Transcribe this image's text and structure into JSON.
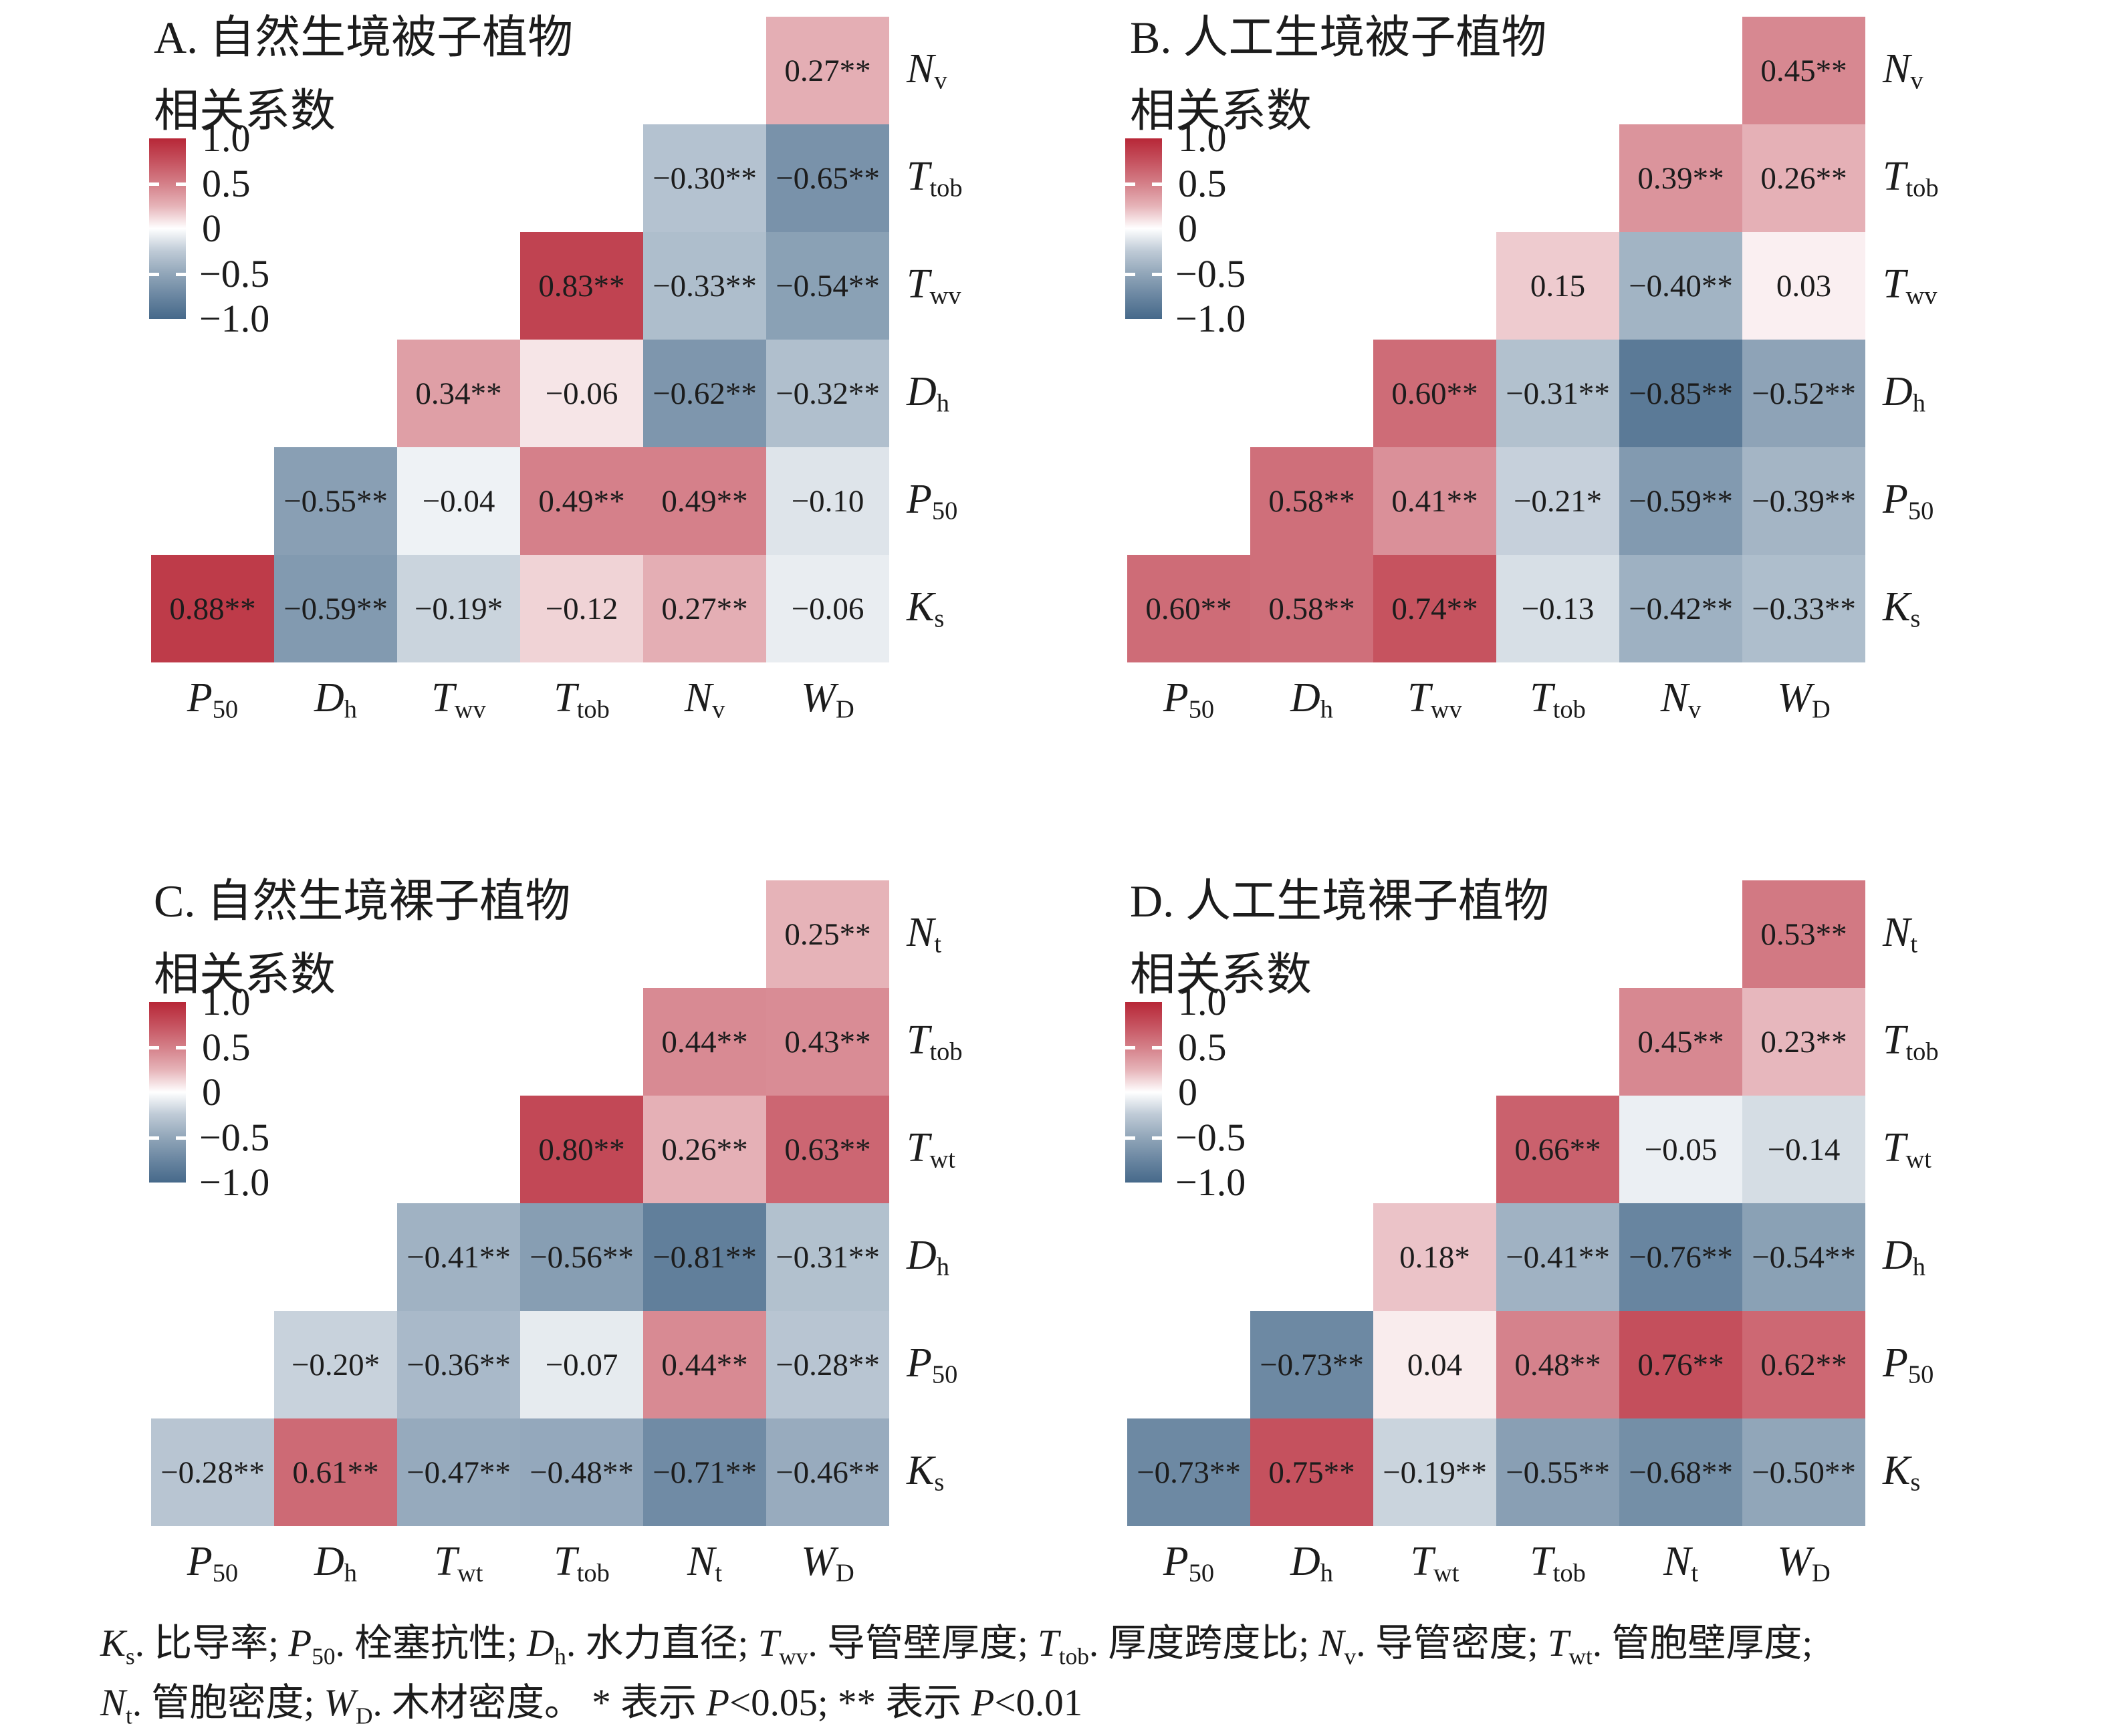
{
  "palette": {
    "positive_max": "#b72737",
    "negative_min": "#46698a",
    "zero": "#ffffff",
    "gamma": 0.75,
    "text": "#1c1c1c"
  },
  "legend": {
    "label": "相关系数",
    "ticks": [
      "1.0",
      "0.5",
      "0",
      "−0.5",
      "−1.0"
    ],
    "tick_values": [
      1.0,
      0.5,
      0,
      -0.5,
      -1.0
    ],
    "range": [
      -1,
      1
    ]
  },
  "chart_data": [
    {
      "id": "A",
      "type": "heatmap",
      "title": "A. 自然生境被子植物",
      "legend_label": "相关系数",
      "value_range": [
        -1,
        1
      ],
      "columns": [
        [
          "P",
          "50"
        ],
        [
          "D",
          "h"
        ],
        [
          "T",
          "wv"
        ],
        [
          "T",
          "tob"
        ],
        [
          "N",
          "v"
        ],
        [
          "W",
          "D"
        ]
      ],
      "rows": [
        [
          "N",
          "v"
        ],
        [
          "T",
          "tob"
        ],
        [
          "T",
          "wv"
        ],
        [
          "D",
          "h"
        ],
        [
          "P",
          "50"
        ],
        [
          "K",
          "s"
        ]
      ],
      "cells": [
        {
          "r": 0,
          "c": 5,
          "label": "0.27**",
          "value": 0.27
        },
        {
          "r": 1,
          "c": 4,
          "label": "−0.30**",
          "value": -0.3
        },
        {
          "r": 1,
          "c": 5,
          "label": "−0.65**",
          "value": -0.65
        },
        {
          "r": 2,
          "c": 3,
          "label": "0.83**",
          "value": 0.83
        },
        {
          "r": 2,
          "c": 4,
          "label": "−0.33**",
          "value": -0.33
        },
        {
          "r": 2,
          "c": 5,
          "label": "−0.54**",
          "value": -0.54
        },
        {
          "r": 3,
          "c": 2,
          "label": "0.34**",
          "value": 0.34
        },
        {
          "r": 3,
          "c": 3,
          "label": "−0.06",
          "value": -0.06,
          "color_value": 0.06
        },
        {
          "r": 3,
          "c": 4,
          "label": "−0.62**",
          "value": -0.62
        },
        {
          "r": 3,
          "c": 5,
          "label": "−0.32**",
          "value": -0.32
        },
        {
          "r": 4,
          "c": 1,
          "label": "−0.55**",
          "value": -0.55
        },
        {
          "r": 4,
          "c": 2,
          "label": "−0.04",
          "value": -0.04
        },
        {
          "r": 4,
          "c": 3,
          "label": "0.49**",
          "value": 0.49
        },
        {
          "r": 4,
          "c": 4,
          "label": "0.49**",
          "value": 0.49
        },
        {
          "r": 4,
          "c": 5,
          "label": "−0.10",
          "value": -0.1
        },
        {
          "r": 5,
          "c": 0,
          "label": "0.88**",
          "value": 0.88
        },
        {
          "r": 5,
          "c": 1,
          "label": "−0.59**",
          "value": -0.59
        },
        {
          "r": 5,
          "c": 2,
          "label": "−0.19*",
          "value": -0.19
        },
        {
          "r": 5,
          "c": 3,
          "label": "−0.12",
          "value": -0.12,
          "color_value": 0.12
        },
        {
          "r": 5,
          "c": 4,
          "label": "0.27**",
          "value": 0.27
        },
        {
          "r": 5,
          "c": 5,
          "label": "−0.06",
          "value": -0.06
        }
      ]
    },
    {
      "id": "B",
      "type": "heatmap",
      "title": "B. 人工生境被子植物",
      "legend_label": "相关系数",
      "value_range": [
        -1,
        1
      ],
      "columns": [
        [
          "P",
          "50"
        ],
        [
          "D",
          "h"
        ],
        [
          "T",
          "wv"
        ],
        [
          "T",
          "tob"
        ],
        [
          "N",
          "v"
        ],
        [
          "W",
          "D"
        ]
      ],
      "rows": [
        [
          "N",
          "v"
        ],
        [
          "T",
          "tob"
        ],
        [
          "T",
          "wv"
        ],
        [
          "D",
          "h"
        ],
        [
          "P",
          "50"
        ],
        [
          "K",
          "s"
        ]
      ],
      "cells": [
        {
          "r": 0,
          "c": 5,
          "label": "0.45**",
          "value": 0.45
        },
        {
          "r": 1,
          "c": 4,
          "label": "0.39**",
          "value": 0.39
        },
        {
          "r": 1,
          "c": 5,
          "label": "0.26**",
          "value": 0.26
        },
        {
          "r": 2,
          "c": 3,
          "label": "0.15",
          "value": 0.15
        },
        {
          "r": 2,
          "c": 4,
          "label": "−0.40**",
          "value": -0.4
        },
        {
          "r": 2,
          "c": 5,
          "label": "0.03",
          "value": 0.03
        },
        {
          "r": 3,
          "c": 2,
          "label": "0.60**",
          "value": 0.6
        },
        {
          "r": 3,
          "c": 3,
          "label": "−0.31**",
          "value": -0.31
        },
        {
          "r": 3,
          "c": 4,
          "label": "−0.85**",
          "value": -0.85
        },
        {
          "r": 3,
          "c": 5,
          "label": "−0.52**",
          "value": -0.52
        },
        {
          "r": 4,
          "c": 1,
          "label": "0.58**",
          "value": 0.58
        },
        {
          "r": 4,
          "c": 2,
          "label": "0.41**",
          "value": 0.41
        },
        {
          "r": 4,
          "c": 3,
          "label": "−0.21*",
          "value": -0.21
        },
        {
          "r": 4,
          "c": 4,
          "label": "−0.59**",
          "value": -0.59
        },
        {
          "r": 4,
          "c": 5,
          "label": "−0.39**",
          "value": -0.39
        },
        {
          "r": 5,
          "c": 0,
          "label": "0.60**",
          "value": 0.6
        },
        {
          "r": 5,
          "c": 1,
          "label": "0.58**",
          "value": 0.58
        },
        {
          "r": 5,
          "c": 2,
          "label": "0.74**",
          "value": 0.74
        },
        {
          "r": 5,
          "c": 3,
          "label": "−0.13",
          "value": -0.13
        },
        {
          "r": 5,
          "c": 4,
          "label": "−0.42**",
          "value": -0.42
        },
        {
          "r": 5,
          "c": 5,
          "label": "−0.33**",
          "value": -0.33
        }
      ]
    },
    {
      "id": "C",
      "type": "heatmap",
      "title": "C. 自然生境裸子植物",
      "legend_label": "相关系数",
      "value_range": [
        -1,
        1
      ],
      "columns": [
        [
          "P",
          "50"
        ],
        [
          "D",
          "h"
        ],
        [
          "T",
          "wt"
        ],
        [
          "T",
          "tob"
        ],
        [
          "N",
          "t"
        ],
        [
          "W",
          "D"
        ]
      ],
      "rows": [
        [
          "N",
          "t"
        ],
        [
          "T",
          "tob"
        ],
        [
          "T",
          "wt"
        ],
        [
          "D",
          "h"
        ],
        [
          "P",
          "50"
        ],
        [
          "K",
          "s"
        ]
      ],
      "cells": [
        {
          "r": 0,
          "c": 5,
          "label": "0.25**",
          "value": 0.25
        },
        {
          "r": 1,
          "c": 4,
          "label": "0.44**",
          "value": 0.44
        },
        {
          "r": 1,
          "c": 5,
          "label": "0.43**",
          "value": 0.43
        },
        {
          "r": 2,
          "c": 3,
          "label": "0.80**",
          "value": 0.8
        },
        {
          "r": 2,
          "c": 4,
          "label": "0.26**",
          "value": 0.26
        },
        {
          "r": 2,
          "c": 5,
          "label": "0.63**",
          "value": 0.63
        },
        {
          "r": 3,
          "c": 2,
          "label": "−0.41**",
          "value": -0.41
        },
        {
          "r": 3,
          "c": 3,
          "label": "−0.56**",
          "value": -0.56
        },
        {
          "r": 3,
          "c": 4,
          "label": "−0.81**",
          "value": -0.81
        },
        {
          "r": 3,
          "c": 5,
          "label": "−0.31**",
          "value": -0.31
        },
        {
          "r": 4,
          "c": 1,
          "label": "−0.20*",
          "value": -0.2
        },
        {
          "r": 4,
          "c": 2,
          "label": "−0.36**",
          "value": -0.36
        },
        {
          "r": 4,
          "c": 3,
          "label": "−0.07",
          "value": -0.07
        },
        {
          "r": 4,
          "c": 4,
          "label": "0.44**",
          "value": 0.44
        },
        {
          "r": 4,
          "c": 5,
          "label": "−0.28**",
          "value": -0.28
        },
        {
          "r": 5,
          "c": 0,
          "label": "−0.28**",
          "value": -0.28
        },
        {
          "r": 5,
          "c": 1,
          "label": "0.61**",
          "value": 0.61
        },
        {
          "r": 5,
          "c": 2,
          "label": "−0.47**",
          "value": -0.47
        },
        {
          "r": 5,
          "c": 3,
          "label": "−0.48**",
          "value": -0.48
        },
        {
          "r": 5,
          "c": 4,
          "label": "−0.71**",
          "value": -0.71
        },
        {
          "r": 5,
          "c": 5,
          "label": "−0.46**",
          "value": -0.46
        }
      ]
    },
    {
      "id": "D",
      "type": "heatmap",
      "title": "D. 人工生境裸子植物",
      "legend_label": "相关系数",
      "value_range": [
        -1,
        1
      ],
      "columns": [
        [
          "P",
          "50"
        ],
        [
          "D",
          "h"
        ],
        [
          "T",
          "wt"
        ],
        [
          "T",
          "tob"
        ],
        [
          "N",
          "t"
        ],
        [
          "W",
          "D"
        ]
      ],
      "rows": [
        [
          "N",
          "t"
        ],
        [
          "T",
          "tob"
        ],
        [
          "T",
          "wt"
        ],
        [
          "D",
          "h"
        ],
        [
          "P",
          "50"
        ],
        [
          "K",
          "s"
        ]
      ],
      "cells": [
        {
          "r": 0,
          "c": 5,
          "label": "0.53**",
          "value": 0.53
        },
        {
          "r": 1,
          "c": 4,
          "label": "0.45**",
          "value": 0.45
        },
        {
          "r": 1,
          "c": 5,
          "label": "0.23**",
          "value": 0.23
        },
        {
          "r": 2,
          "c": 3,
          "label": "0.66**",
          "value": 0.66
        },
        {
          "r": 2,
          "c": 4,
          "label": "−0.05",
          "value": -0.05
        },
        {
          "r": 2,
          "c": 5,
          "label": "−0.14",
          "value": -0.14
        },
        {
          "r": 3,
          "c": 2,
          "label": "0.18*",
          "value": 0.18
        },
        {
          "r": 3,
          "c": 3,
          "label": "−0.41**",
          "value": -0.41
        },
        {
          "r": 3,
          "c": 4,
          "label": "−0.76**",
          "value": -0.76
        },
        {
          "r": 3,
          "c": 5,
          "label": "−0.54**",
          "value": -0.54
        },
        {
          "r": 4,
          "c": 1,
          "label": "−0.73**",
          "value": -0.73
        },
        {
          "r": 4,
          "c": 2,
          "label": "0.04",
          "value": 0.04
        },
        {
          "r": 4,
          "c": 3,
          "label": "0.48**",
          "value": 0.48
        },
        {
          "r": 4,
          "c": 4,
          "label": "0.76**",
          "value": 0.76
        },
        {
          "r": 4,
          "c": 5,
          "label": "0.62**",
          "value": 0.62
        },
        {
          "r": 5,
          "c": 0,
          "label": "−0.73**",
          "value": -0.73
        },
        {
          "r": 5,
          "c": 1,
          "label": "0.75**",
          "value": 0.75
        },
        {
          "r": 5,
          "c": 2,
          "label": "−0.19**",
          "value": -0.19
        },
        {
          "r": 5,
          "c": 3,
          "label": "−0.55**",
          "value": -0.55
        },
        {
          "r": 5,
          "c": 4,
          "label": "−0.68**",
          "value": -0.68
        },
        {
          "r": 5,
          "c": 5,
          "label": "−0.50**",
          "value": -0.5
        }
      ]
    }
  ],
  "caption": {
    "lines": [
      [
        {
          "t": "K",
          "i": 1
        },
        {
          "t": "s",
          "s": 1
        },
        {
          "t": ". 比导率; "
        },
        {
          "t": "P",
          "i": 1
        },
        {
          "t": "50",
          "s": 1
        },
        {
          "t": ". 栓塞抗性; "
        },
        {
          "t": "D",
          "i": 1
        },
        {
          "t": "h",
          "s": 1
        },
        {
          "t": ". 水力直径; "
        },
        {
          "t": "T",
          "i": 1
        },
        {
          "t": "wv",
          "s": 1
        },
        {
          "t": ". 导管壁厚度; "
        },
        {
          "t": "T",
          "i": 1
        },
        {
          "t": "tob",
          "s": 1
        },
        {
          "t": ". 厚度跨度比; "
        },
        {
          "t": "N",
          "i": 1
        },
        {
          "t": "v",
          "s": 1
        },
        {
          "t": ". 导管密度; "
        },
        {
          "t": "T",
          "i": 1
        },
        {
          "t": "wt",
          "s": 1
        },
        {
          "t": ". 管胞壁厚度;"
        }
      ],
      [
        {
          "t": "N",
          "i": 1
        },
        {
          "t": "t",
          "s": 1
        },
        {
          "t": ". 管胞密度; "
        },
        {
          "t": "W",
          "i": 1
        },
        {
          "t": "D",
          "s": 1
        },
        {
          "t": ". 木材密度。 * 表示 "
        },
        {
          "t": "P",
          "i": 1
        },
        {
          "t": "<0.05; ** 表示 "
        },
        {
          "t": "P",
          "i": 1
        },
        {
          "t": "<0.01"
        }
      ]
    ]
  }
}
